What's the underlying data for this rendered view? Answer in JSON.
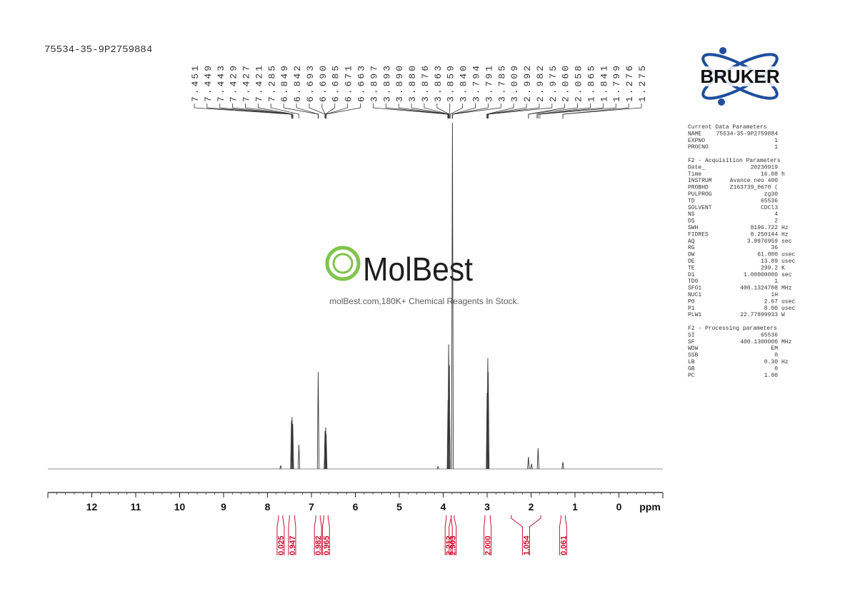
{
  "header": {
    "sample_id": "75534-35-9P2759884"
  },
  "logo": {
    "text": "BRUKER"
  },
  "watermark": {
    "brand": "MolBest",
    "tagline": "molBest.com,180K+ Chemical Reagents In Stock."
  },
  "chart_data": {
    "type": "spectrum",
    "x_label": "ppm",
    "xlim": [
      13.0,
      -1.0
    ],
    "xticks": [
      12,
      11,
      10,
      9,
      8,
      7,
      6,
      5,
      4,
      3,
      2,
      1,
      0
    ],
    "color": "#333333",
    "peaks": {
      "x": [
        7.7,
        7.455,
        7.44,
        7.425,
        7.285,
        6.846,
        6.69,
        6.675,
        6.665,
        4.12,
        3.89,
        3.876,
        3.86,
        3.79,
        3.0,
        2.985,
        2.975,
        2.06,
        1.99,
        1.84,
        1.276
      ],
      "values": [
        1,
        14,
        15,
        13,
        7,
        28,
        11,
        12,
        10,
        0.7,
        20,
        36,
        30,
        100,
        22,
        32,
        28,
        3.5,
        1.5,
        6,
        2
      ]
    },
    "peak_labels": [
      "7.451",
      "7.449",
      "7.443",
      "7.429",
      "7.427",
      "7.421",
      "7.285",
      "6.849",
      "6.842",
      "6.693",
      "6.690",
      "6.685",
      "6.671",
      "6.663",
      "3.897",
      "3.893",
      "3.890",
      "3.880",
      "3.876",
      "3.863",
      "3.859",
      "3.840",
      "3.794",
      "3.791",
      "3.785",
      "3.009",
      "2.992",
      "2.982",
      "2.975",
      "2.060",
      "2.058",
      "1.865",
      "1.841",
      "1.799",
      "1.276",
      "1.275"
    ],
    "integrals": {
      "labels": [
        "0.025",
        "0.947",
        "0.982",
        "0.965",
        "2.212",
        "2.903",
        "2.000",
        "1.054",
        "0.061"
      ],
      "ranges": [
        [
          7.75,
          7.65
        ],
        [
          7.5,
          7.38
        ],
        [
          6.9,
          6.8
        ],
        [
          6.72,
          6.62
        ],
        [
          3.93,
          3.82
        ],
        [
          3.82,
          3.75
        ],
        [
          3.05,
          2.93
        ],
        [
          2.45,
          1.78
        ],
        [
          1.32,
          1.22
        ]
      ]
    }
  },
  "parameters": {
    "sections": [
      {
        "title": "Current Data Parameters",
        "rows": [
          [
            "NAME",
            "75534-35-9P2759884"
          ],
          [
            "EXPNO",
            "1"
          ],
          [
            "PROCNO",
            "1"
          ]
        ]
      },
      {
        "title": "F2 - Acquisition Parameters",
        "rows": [
          [
            "Date_",
            "20230919"
          ],
          [
            "Time",
            "16.08",
            "h"
          ],
          [
            "INSTRUM",
            "Avance neo 400"
          ],
          [
            "PROBHD",
            "Z163739_0670 ("
          ],
          [
            "PULPROG",
            "zg30"
          ],
          [
            "TD",
            "65536"
          ],
          [
            "SOLVENT",
            "CDCl3"
          ],
          [
            "NS",
            "4"
          ],
          [
            "DS",
            "2"
          ],
          [
            "SWH",
            "8196.722",
            "Hz"
          ],
          [
            "FIDRES",
            "0.250144",
            "Hz"
          ],
          [
            "AQ",
            "3.9976959",
            "sec"
          ],
          [
            "RG",
            "36"
          ],
          [
            "DW",
            "61.000",
            "usec"
          ],
          [
            "DE",
            "13.89",
            "usec"
          ],
          [
            "TE",
            "299.2",
            "K"
          ],
          [
            "D1",
            "1.00000000",
            "sec"
          ],
          [
            "TD0",
            "1"
          ],
          [
            "SFO1",
            "400.1324708",
            "MHz"
          ],
          [
            "NUC1",
            "1H"
          ],
          [
            "P0",
            "2.67",
            "usec"
          ],
          [
            "P1",
            "8.00",
            "usec"
          ],
          [
            "PLW1",
            "22.77899933",
            "W"
          ]
        ]
      },
      {
        "title": "F2 - Processing parameters",
        "rows": [
          [
            "SI",
            "65536"
          ],
          [
            "SF",
            "400.1300000",
            "MHz"
          ],
          [
            "WDW",
            "EM"
          ],
          [
            "SSB",
            "0"
          ],
          [
            "LB",
            "0.30",
            "Hz"
          ],
          [
            "GB",
            "0"
          ],
          [
            "PC",
            "1.00"
          ]
        ]
      }
    ]
  }
}
